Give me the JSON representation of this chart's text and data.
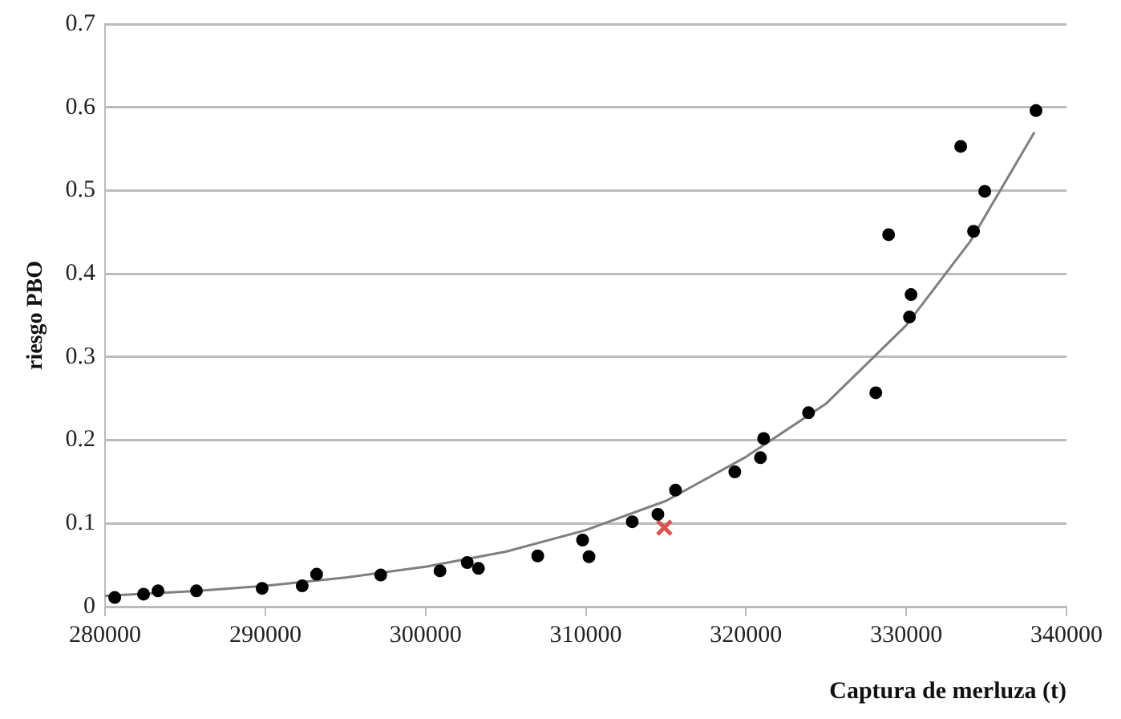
{
  "chart_data": {
    "type": "scatter",
    "xlabel": "Captura de merluza (t)",
    "ylabel": "riesgo PBO",
    "xlim": [
      280000,
      340000
    ],
    "xticks": [
      280000,
      290000,
      300000,
      310000,
      320000,
      330000,
      340000
    ],
    "ylim": [
      0,
      0.7
    ],
    "yticks": [
      0,
      0.1,
      0.2,
      0.3,
      0.4,
      0.5,
      0.6,
      0.7
    ],
    "grid": "y",
    "legend": false,
    "series": [
      {
        "type": "scatter",
        "marker": "circle",
        "color": "#000000",
        "x": [
          280600,
          282400,
          283300,
          285700,
          289800,
          292300,
          293200,
          297200,
          300900,
          302600,
          303300,
          307000,
          309800,
          310200,
          312900,
          314500,
          315600,
          319300,
          320900,
          321100,
          323900,
          328100,
          330200,
          330300,
          328900,
          334200,
          334900,
          333400,
          338100
        ],
        "values": [
          0.011,
          0.015,
          0.019,
          0.019,
          0.022,
          0.025,
          0.039,
          0.038,
          0.043,
          0.053,
          0.046,
          0.061,
          0.08,
          0.06,
          0.102,
          0.111,
          0.14,
          0.162,
          0.179,
          0.202,
          0.233,
          0.257,
          0.348,
          0.375,
          0.447,
          0.451,
          0.499,
          0.553,
          0.596
        ]
      },
      {
        "type": "scatter",
        "marker": "cross",
        "color": "#d9534f",
        "x": [
          314900
        ],
        "values": [
          0.095
        ]
      },
      {
        "type": "line",
        "marker": "none",
        "color": "#7f7f7f",
        "x": [
          280000,
          285000,
          290000,
          295000,
          300000,
          305000,
          310000,
          315000,
          320000,
          325000,
          330000,
          334000,
          338000
        ],
        "values": [
          0.013,
          0.018,
          0.025,
          0.035,
          0.048,
          0.066,
          0.092,
          0.127,
          0.18,
          0.244,
          0.338,
          0.439,
          0.57
        ]
      }
    ]
  }
}
